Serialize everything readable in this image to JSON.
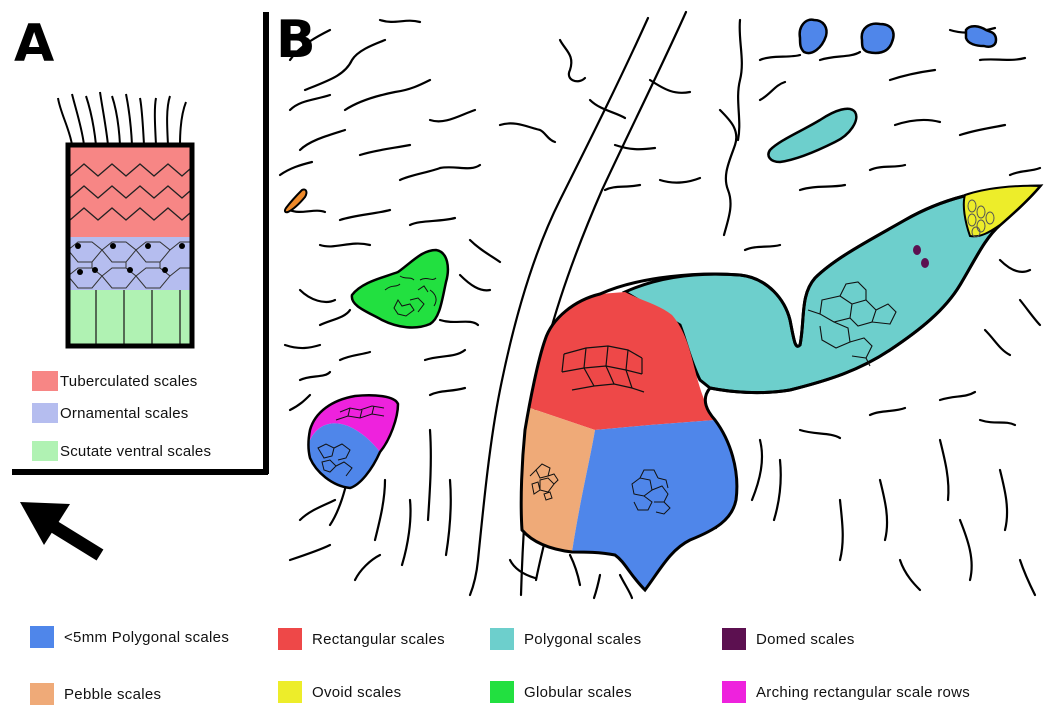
{
  "panels": {
    "a_label": "A",
    "b_label": "B"
  },
  "inset_legend": [
    {
      "label": "Tuberculated scales",
      "color": "#f78685"
    },
    {
      "label": "Ornamental scales",
      "color": "#b5bdef"
    },
    {
      "label": "Scutate ventral scales",
      "color": "#b0f2b3"
    }
  ],
  "legend": [
    {
      "label": "<5mm Polygonal scales",
      "color": "#4f86ea"
    },
    {
      "label": "Rectangular scales",
      "color": "#ee4848"
    },
    {
      "label": "Polygonal scales",
      "color": "#6dcfcc"
    },
    {
      "label": "Domed scales",
      "color": "#5c1050"
    },
    {
      "label": "Pebble scales",
      "color": "#efaa78"
    },
    {
      "label": "Ovoid scales",
      "color": "#eded2a"
    },
    {
      "label": "Globular scales",
      "color": "#22e040"
    },
    {
      "label": "Arching rectangular scale rows",
      "color": "#ee22dd"
    }
  ]
}
